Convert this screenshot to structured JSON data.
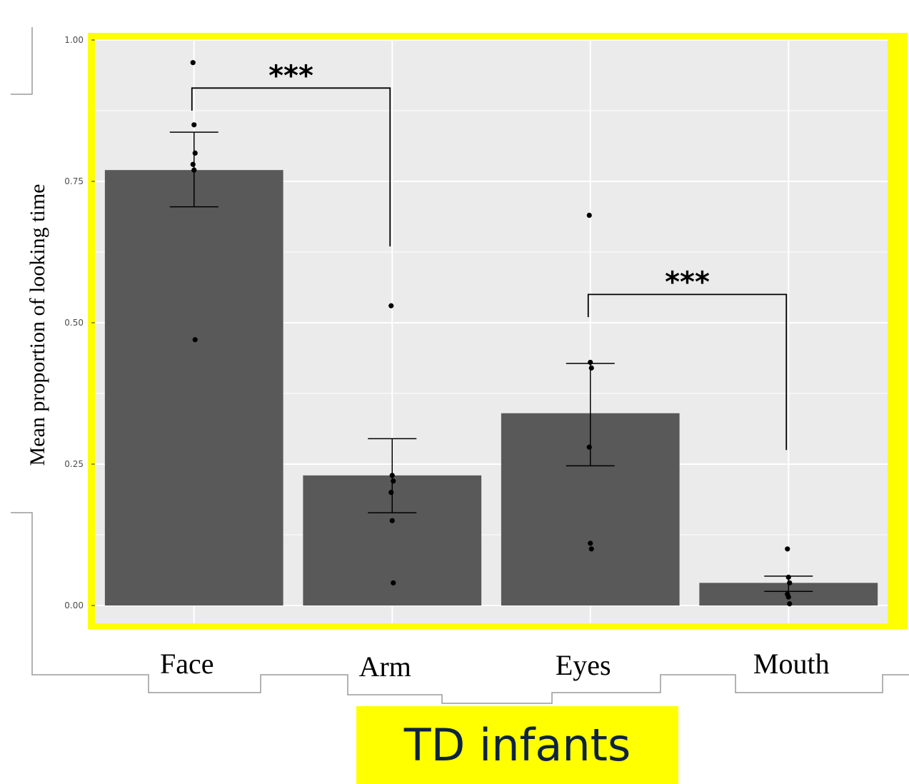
{
  "chart_data": {
    "type": "bar",
    "ylabel": "Mean  proportion of looking time",
    "ylim": [
      0,
      1
    ],
    "y_ticks": [
      {
        "value": 0,
        "label": "0.00"
      },
      {
        "value": 0.25,
        "label": "0.25"
      },
      {
        "value": 0.5,
        "label": "0.50"
      },
      {
        "value": 0.75,
        "label": "0.75"
      },
      {
        "value": 1,
        "label": "1.00"
      }
    ],
    "categories": [
      "Face",
      "Arm",
      "Eyes",
      "Mouth"
    ],
    "values": [
      0.77,
      0.23,
      0.34,
      0.04
    ],
    "error_bars": [
      {
        "low": 0.705,
        "high": 0.837
      },
      {
        "low": 0.164,
        "high": 0.295
      },
      {
        "low": 0.247,
        "high": 0.428
      },
      {
        "low": 0.025,
        "high": 0.052
      }
    ],
    "points": [
      [
        0.96,
        0.85,
        0.8,
        0.78,
        0.77,
        0.47
      ],
      [
        0.53,
        0.23,
        0.22,
        0.2,
        0.15,
        0.04
      ],
      [
        0.69,
        0.43,
        0.42,
        0.28,
        0.11,
        0.1
      ],
      [
        0.1,
        0.05,
        0.04,
        0.02,
        0.015,
        0.003
      ]
    ],
    "significance": [
      {
        "from": "Face",
        "to": "Arm",
        "label": "***"
      },
      {
        "from": "Eyes",
        "to": "Mouth",
        "label": "***"
      }
    ],
    "grid": true,
    "colors": {
      "bar": "#595959",
      "panel": "#ebebeb",
      "gridline": "#ffffff",
      "highlight_border": "#ffff00",
      "point": "#000000"
    }
  },
  "caption": {
    "text": "TD infants",
    "background": "#ffff00",
    "color": "#0d2340"
  }
}
